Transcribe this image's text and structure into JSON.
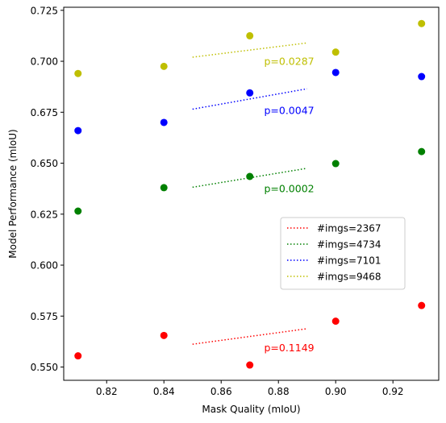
{
  "chart_data": {
    "type": "scatter",
    "xlabel": "Mask Quality (mIoU)",
    "ylabel": "Model Performance (mIoU)",
    "xlim": [
      0.805,
      0.936
    ],
    "ylim": [
      0.5435,
      0.7265
    ],
    "x_ticks": [
      "0.82",
      "0.84",
      "0.86",
      "0.88",
      "0.90",
      "0.92"
    ],
    "y_ticks": [
      "0.550",
      "0.575",
      "0.600",
      "0.625",
      "0.650",
      "0.675",
      "0.700",
      "0.725"
    ],
    "grid": false,
    "legend_position": "center-right",
    "x": [
      0.81,
      0.84,
      0.87,
      0.9,
      0.93
    ],
    "series": [
      {
        "name": "#imgs=2367",
        "color": "#ff0000",
        "values": [
          0.5555,
          0.5655,
          0.551,
          0.5725,
          0.5802
        ],
        "trend": {
          "x": [
            0.85,
            0.89
          ],
          "y": [
            0.5612,
            0.5688
          ]
        },
        "annotation": "p=0.1149",
        "annotation_at": [
          0.875,
          0.5595
        ]
      },
      {
        "name": "#imgs=4734",
        "color": "#008000",
        "values": [
          0.6265,
          0.638,
          0.6435,
          0.6498,
          0.6557
        ],
        "trend": {
          "x": [
            0.85,
            0.89
          ],
          "y": [
            0.6382,
            0.6475
          ]
        },
        "annotation": "p=0.0002",
        "annotation_at": [
          0.875,
          0.6375
        ]
      },
      {
        "name": "#imgs=7101",
        "color": "#0000ff",
        "values": [
          0.666,
          0.67,
          0.6845,
          0.6945,
          0.6925
        ],
        "trend": {
          "x": [
            0.85,
            0.89
          ],
          "y": [
            0.6765,
            0.6865
          ]
        },
        "annotation": "p=0.0047",
        "annotation_at": [
          0.875,
          0.676
        ]
      },
      {
        "name": "#imgs=9468",
        "color": "#bfbf00",
        "values": [
          0.694,
          0.6975,
          0.7125,
          0.7045,
          0.7185
        ],
        "trend": {
          "x": [
            0.85,
            0.89
          ],
          "y": [
            0.702,
            0.709
          ]
        },
        "annotation": "p=0.0287",
        "annotation_at": [
          0.875,
          0.7
        ]
      }
    ]
  }
}
